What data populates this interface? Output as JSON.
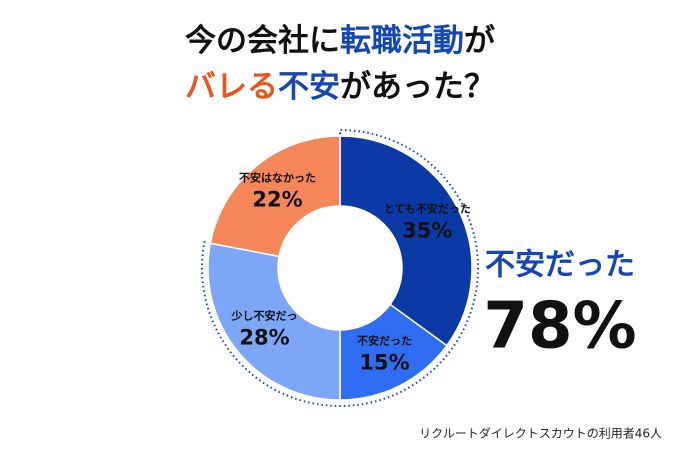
{
  "chart_data": {
    "type": "donut",
    "title_lines": [
      [
        {
          "text": "今の会社に",
          "color": "#111111"
        },
        {
          "text": "転職活動",
          "color": "#1446b8"
        },
        {
          "text": "が",
          "color": "#111111"
        }
      ],
      [
        {
          "text": "バレる",
          "color": "#f0541e"
        },
        {
          "text": "不安",
          "color": "#1446b8"
        },
        {
          "text": "があった？",
          "color": "#111111"
        }
      ]
    ],
    "categories": [
      "とても不安だった",
      "不安だった",
      "少し不安だっ",
      "不安はなかった"
    ],
    "values": [
      35,
      15,
      28,
      22
    ],
    "value_labels": [
      "35%",
      "15%",
      "28%",
      "22%"
    ],
    "colors": [
      "#0b3aa6",
      "#2f6ef2",
      "#7ea6f6",
      "#f5865a"
    ],
    "summary": {
      "label": "不安だった",
      "value_label": "78%",
      "color": "#1446b8"
    },
    "source": "リクルートダイレクトスカウトの利用者46人"
  }
}
